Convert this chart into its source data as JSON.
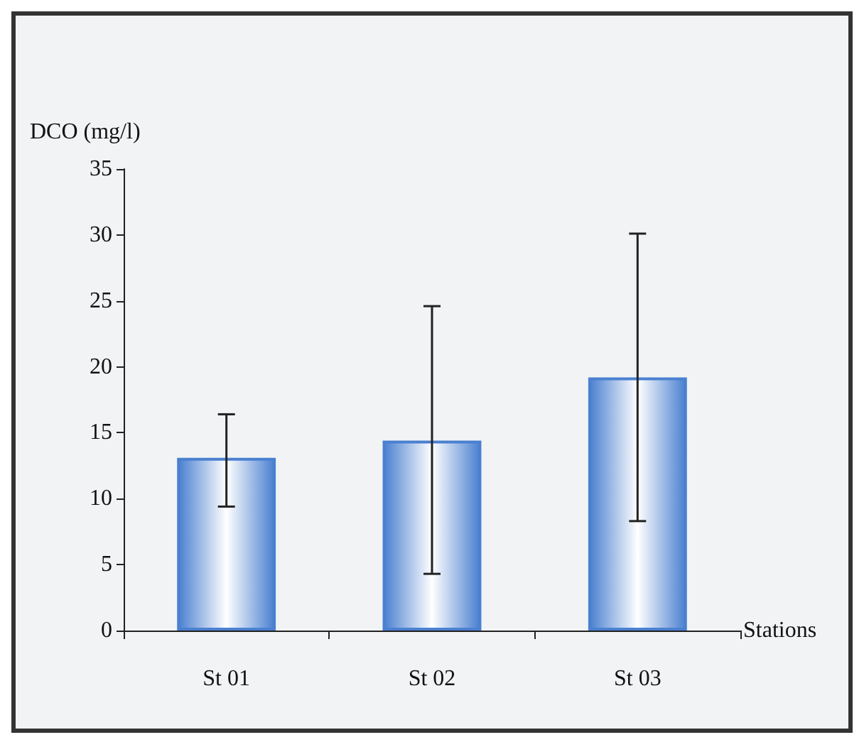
{
  "chart_data": {
    "type": "bar",
    "xlabel": "Stations",
    "ylabel": "DCO (mg/l)",
    "categories": [
      "St 01",
      "St 02",
      "St 03"
    ],
    "values": [
      13.1,
      14.4,
      19.2
    ],
    "errors": [
      [
        9.4,
        16.4
      ],
      [
        4.3,
        24.6
      ],
      [
        8.3,
        30.1
      ]
    ],
    "color": "#4a80d0",
    "ylim": [
      0,
      35
    ],
    "yticks": [
      0,
      5,
      10,
      15,
      20,
      25,
      30,
      35
    ],
    "grid": false
  }
}
